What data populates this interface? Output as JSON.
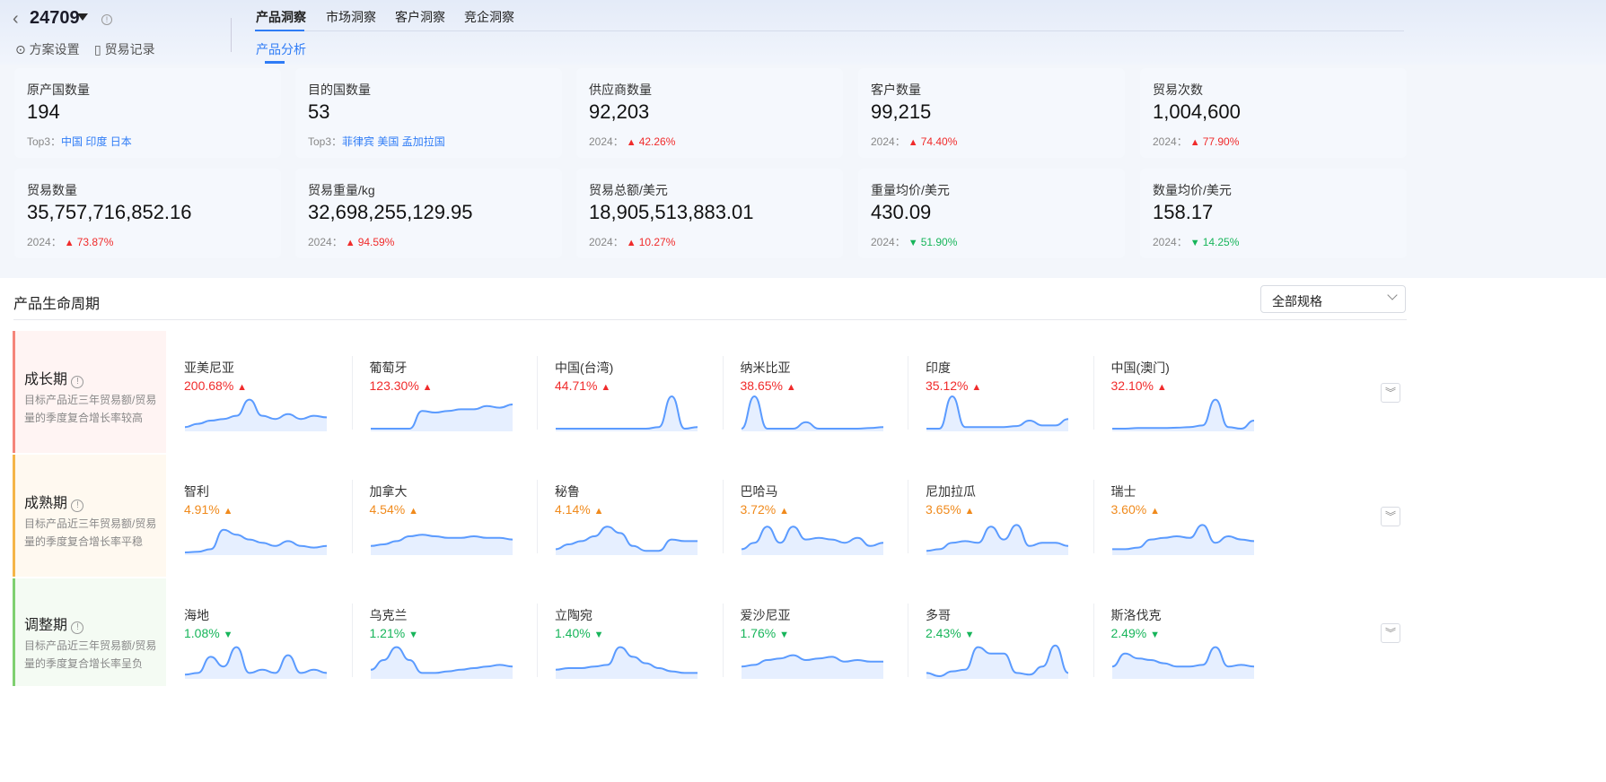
{
  "header": {
    "code": "24709",
    "settings": "方案设置",
    "records": "贸易记录",
    "tabs": [
      "产品洞察",
      "市场洞察",
      "客户洞察",
      "竞企洞察"
    ],
    "subtab": "产品分析"
  },
  "cards": [
    {
      "label": "原产国数量",
      "value": "194",
      "sub_prefix": "Top3：",
      "sub": "中国 印度 日本",
      "trend": "top"
    },
    {
      "label": "目的国数量",
      "value": "53",
      "sub_prefix": "Top3：",
      "sub": "菲律宾 美国 孟加拉国",
      "trend": "top"
    },
    {
      "label": "供应商数量",
      "value": "92,203",
      "sub_prefix": "2024：",
      "sub": "42.26%",
      "trend": "up"
    },
    {
      "label": "客户数量",
      "value": "99,215",
      "sub_prefix": "2024：",
      "sub": "74.40%",
      "trend": "up"
    },
    {
      "label": "贸易次数",
      "value": "1,004,600",
      "sub_prefix": "2024：",
      "sub": "77.90%",
      "trend": "up"
    },
    {
      "label": "贸易数量",
      "value": "35,757,716,852.16",
      "sub_prefix": "2024：",
      "sub": "73.87%",
      "trend": "up"
    },
    {
      "label": "贸易重量/kg",
      "value": "32,698,255,129.95",
      "sub_prefix": "2024：",
      "sub": "94.59%",
      "trend": "up"
    },
    {
      "label": "贸易总额/美元",
      "value": "18,905,513,883.01",
      "sub_prefix": "2024：",
      "sub": "10.27%",
      "trend": "up"
    },
    {
      "label": "重量均价/美元",
      "value": "430.09",
      "sub_prefix": "2024：",
      "sub": "51.90%",
      "trend": "down"
    },
    {
      "label": "数量均价/美元",
      "value": "158.17",
      "sub_prefix": "2024：",
      "sub": "14.25%",
      "trend": "down"
    }
  ],
  "lifecycle": {
    "title": "产品生命周期",
    "filter": "全部规格",
    "colors": {
      "up": "#f02b2b",
      "flat": "#f08a1c",
      "down": "#17b55a",
      "line": "#5b9bff"
    },
    "stages": [
      {
        "name": "成长期",
        "desc": "目标产品近三年贸易额/贸易量的季度复合增长率较高",
        "trend": "up",
        "border": "#f5857a",
        "bg": "#fff4f3",
        "items": [
          {
            "country": "亚美尼亚",
            "rate": "200.68%",
            "spark": [
              0.05,
              0.15,
              0.25,
              0.3,
              0.4,
              0.9,
              0.4,
              0.3,
              0.45,
              0.3,
              0.4,
              0.35
            ]
          },
          {
            "country": "葡萄牙",
            "rate": "123.30%",
            "spark": [
              0,
              0,
              0,
              0,
              0.55,
              0.5,
              0.55,
              0.6,
              0.6,
              0.7,
              0.65,
              0.75
            ]
          },
          {
            "country": "中国(台湾)",
            "rate": "44.71%",
            "spark": [
              0,
              0,
              0,
              0,
              0,
              0,
              0,
              0,
              0.05,
              1,
              0,
              0.05
            ]
          },
          {
            "country": "纳米比亚",
            "rate": "38.65%",
            "spark": [
              0,
              1,
              0,
              0,
              0,
              0.2,
              0,
              0,
              0,
              0,
              0.02,
              0.05
            ]
          },
          {
            "country": "印度",
            "rate": "35.12%",
            "spark": [
              0,
              0,
              1,
              0.05,
              0.05,
              0.05,
              0.05,
              0.08,
              0.25,
              0.1,
              0.1,
              0.3
            ]
          },
          {
            "country": "中国(澳门)",
            "rate": "32.10%",
            "spark": [
              0,
              0,
              0.02,
              0.02,
              0.02,
              0.03,
              0.05,
              0.1,
              0.9,
              0.05,
              0,
              0.25
            ]
          }
        ]
      },
      {
        "name": "成熟期",
        "desc": "目标产品近三年贸易额/贸易量的季度复合增长率平稳",
        "trend": "flat",
        "border": "#f5b548",
        "bg": "#fff9f0",
        "items": [
          {
            "country": "智利",
            "rate": "4.91%",
            "spark": [
              0,
              0.02,
              0.1,
              0.7,
              0.55,
              0.4,
              0.3,
              0.2,
              0.35,
              0.2,
              0.15,
              0.2
            ]
          },
          {
            "country": "加拿大",
            "rate": "4.54%",
            "spark": [
              0.2,
              0.25,
              0.35,
              0.5,
              0.55,
              0.5,
              0.45,
              0.45,
              0.5,
              0.45,
              0.45,
              0.4
            ]
          },
          {
            "country": "秘鲁",
            "rate": "4.14%",
            "spark": [
              0.1,
              0.25,
              0.35,
              0.5,
              0.8,
              0.6,
              0.2,
              0.05,
              0.05,
              0.4,
              0.35,
              0.35
            ]
          },
          {
            "country": "巴哈马",
            "rate": "3.72%",
            "spark": [
              0.1,
              0.3,
              0.8,
              0.3,
              0.8,
              0.4,
              0.45,
              0.4,
              0.3,
              0.45,
              0.2,
              0.3
            ]
          },
          {
            "country": "尼加拉瓜",
            "rate": "3.65%",
            "spark": [
              0.05,
              0.1,
              0.3,
              0.35,
              0.3,
              0.8,
              0.4,
              0.85,
              0.2,
              0.3,
              0.3,
              0.2
            ]
          },
          {
            "country": "瑞士",
            "rate": "3.60%",
            "spark": [
              0.1,
              0.1,
              0.15,
              0.4,
              0.45,
              0.5,
              0.45,
              0.85,
              0.3,
              0.5,
              0.4,
              0.35
            ]
          }
        ]
      },
      {
        "name": "调整期",
        "desc": "目标产品近三年贸易额/贸易量的季度复合增长率呈负",
        "trend": "down",
        "border": "#7fd070",
        "bg": "#f4fbf3",
        "items": [
          {
            "country": "海地",
            "rate": "1.08%",
            "spark": [
              0.05,
              0.1,
              0.6,
              0.3,
              0.9,
              0.1,
              0.2,
              0.1,
              0.65,
              0.1,
              0.2,
              0.1
            ]
          },
          {
            "country": "乌克兰",
            "rate": "1.21%",
            "spark": [
              0.2,
              0.5,
              0.9,
              0.5,
              0.1,
              0.1,
              0.15,
              0.2,
              0.25,
              0.3,
              0.35,
              0.3
            ]
          },
          {
            "country": "立陶宛",
            "rate": "1.40%",
            "spark": [
              0.2,
              0.25,
              0.25,
              0.3,
              0.35,
              0.9,
              0.6,
              0.4,
              0.25,
              0.15,
              0.1,
              0.1
            ]
          },
          {
            "country": "爱沙尼亚",
            "rate": "1.76%",
            "spark": [
              0.3,
              0.35,
              0.5,
              0.55,
              0.65,
              0.5,
              0.55,
              0.6,
              0.45,
              0.5,
              0.45,
              0.45
            ]
          },
          {
            "country": "多哥",
            "rate": "2.43%",
            "spark": [
              0.1,
              0.0,
              0.15,
              0.2,
              0.9,
              0.7,
              0.7,
              0.1,
              0.05,
              0.3,
              0.95,
              0.1
            ]
          },
          {
            "country": "斯洛伐克",
            "rate": "2.49%",
            "spark": [
              0.3,
              0.7,
              0.55,
              0.5,
              0.4,
              0.3,
              0.3,
              0.35,
              0.9,
              0.3,
              0.35,
              0.3
            ]
          }
        ]
      }
    ]
  }
}
